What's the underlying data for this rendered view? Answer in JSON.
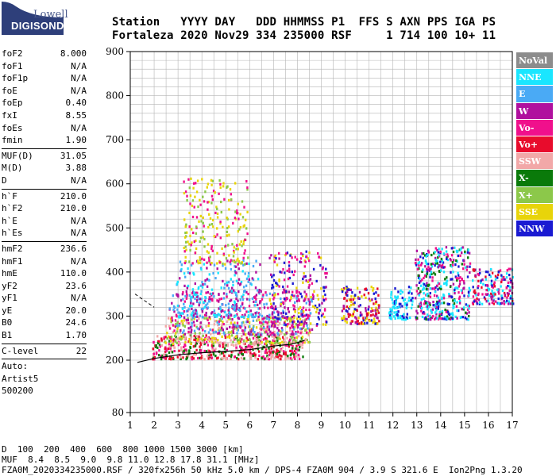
{
  "logo": {
    "line1": "Lowell",
    "line2": "DIGISONDE"
  },
  "header": {
    "line1": "Station   YYYY DAY   DDD HHMMSS P1  FFS S AXN PPS IGA PS",
    "line2": "Fortaleza 2020 Nov29 334 235000 RSF     1 714 100 10+ 11"
  },
  "params": {
    "group1": [
      {
        "name": "foF2",
        "value": "8.000"
      },
      {
        "name": "foF1",
        "value": "N/A"
      },
      {
        "name": "foF1p",
        "value": "N/A"
      },
      {
        "name": "foE",
        "value": "N/A"
      },
      {
        "name": "foEp",
        "value": "0.40"
      },
      {
        "name": "fxI",
        "value": "8.55"
      },
      {
        "name": "foEs",
        "value": "N/A"
      },
      {
        "name": "fmin",
        "value": "1.90"
      }
    ],
    "group2": [
      {
        "name": "MUF(D)",
        "value": "31.05"
      },
      {
        "name": "M(D)",
        "value": "3.88"
      },
      {
        "name": "D",
        "value": "N/A"
      }
    ],
    "group3": [
      {
        "name": "h`F",
        "value": "210.0"
      },
      {
        "name": "h`F2",
        "value": "210.0"
      },
      {
        "name": "h`E",
        "value": "N/A"
      },
      {
        "name": "h`Es",
        "value": "N/A"
      }
    ],
    "group4": [
      {
        "name": "hmF2",
        "value": "236.6"
      },
      {
        "name": "hmF1",
        "value": "N/A"
      },
      {
        "name": "hmE",
        "value": "110.0"
      },
      {
        "name": "yF2",
        "value": "23.6"
      },
      {
        "name": "yF1",
        "value": "N/A"
      },
      {
        "name": "yE",
        "value": "20.0"
      },
      {
        "name": "B0",
        "value": "24.6"
      },
      {
        "name": "B1",
        "value": "1.70"
      }
    ],
    "clevel": {
      "name": "C-level",
      "value": "22"
    },
    "auto": {
      "line1": "Auto:",
      "line2": "Artist5",
      "line3": "500200"
    }
  },
  "legend": [
    {
      "label": "NoVal",
      "color": "#8c8c8c",
      "text": "#ffffff"
    },
    {
      "label": "NNE",
      "color": "#1ae6ff",
      "text": "#ffffff"
    },
    {
      "label": "E",
      "color": "#4aaaf5",
      "text": "#ffffff"
    },
    {
      "label": "W",
      "color": "#b0109e",
      "text": "#ffffff"
    },
    {
      "label": "Vo-",
      "color": "#f0108c",
      "text": "#ffffff"
    },
    {
      "label": "Vo+",
      "color": "#e80c2c",
      "text": "#ffffff"
    },
    {
      "label": "SSW",
      "color": "#f2a8a8",
      "text": "#ffffff"
    },
    {
      "label": "X-",
      "color": "#0a7a0a",
      "text": "#ffffff"
    },
    {
      "label": "X+",
      "color": "#8cc84a",
      "text": "#ffffff"
    },
    {
      "label": "SSE",
      "color": "#e8d40a",
      "text": "#ffffff"
    },
    {
      "label": "NNW",
      "color": "#1a1ad2",
      "text": "#ffffff"
    }
  ],
  "chart_data": {
    "type": "scatter",
    "x_ticks": [
      "1",
      "2",
      "3",
      "4",
      "5",
      "6",
      "7",
      "8",
      "9",
      "10",
      "11",
      "12",
      "13",
      "14",
      "15",
      "16",
      "17"
    ],
    "y_ticks": [
      "80",
      "200",
      "300",
      "400",
      "500",
      "600",
      "700",
      "800",
      "900"
    ],
    "x_range": [
      1,
      17
    ],
    "y_ticks_values": [
      80,
      200,
      300,
      400,
      500,
      600,
      700,
      800,
      900
    ],
    "grid": true,
    "y_nonlinear_note": "80 at bottom, then linear 200-900",
    "clusters": [
      {
        "xr": [
          1.9,
          8.2
        ],
        "yr": [
          205,
          260
        ],
        "colors": [
          "#e80c2c",
          "#f0108c",
          "#f2a8a8",
          "#0a7a0a"
        ],
        "n": 520
      },
      {
        "xr": [
          2.4,
          8.5
        ],
        "yr": [
          240,
          300
        ],
        "colors": [
          "#e8d40a",
          "#8cc84a",
          "#f2a8a8"
        ],
        "n": 320
      },
      {
        "xr": [
          2.6,
          8.6
        ],
        "yr": [
          260,
          360
        ],
        "colors": [
          "#b0109e",
          "#f0108c",
          "#4aaaf5"
        ],
        "n": 380
      },
      {
        "xr": [
          2.9,
          6.4
        ],
        "yr": [
          300,
          430
        ],
        "colors": [
          "#4aaaf5",
          "#1ae6ff",
          "#b0109e"
        ],
        "n": 260
      },
      {
        "xr": [
          3.2,
          5.9
        ],
        "yr": [
          420,
          620
        ],
        "colors": [
          "#e8d40a",
          "#e8d40a",
          "#f0108c",
          "#8cc84a"
        ],
        "n": 230
      },
      {
        "xr": [
          6.8,
          9.2
        ],
        "yr": [
          280,
          450
        ],
        "colors": [
          "#1a1ad2",
          "#e8d40a",
          "#b0109e",
          "#f0108c"
        ],
        "n": 240
      },
      {
        "xr": [
          9.8,
          11.4
        ],
        "yr": [
          285,
          370
        ],
        "colors": [
          "#e8d40a",
          "#b0109e",
          "#1a1ad2",
          "#e80c2c"
        ],
        "n": 170
      },
      {
        "xr": [
          11.8,
          12.8
        ],
        "yr": [
          295,
          370
        ],
        "colors": [
          "#1ae6ff",
          "#1ae6ff",
          "#1a1ad2"
        ],
        "n": 90
      },
      {
        "xr": [
          12.9,
          15.2
        ],
        "yr": [
          295,
          460
        ],
        "colors": [
          "#1ae6ff",
          "#1ae6ff",
          "#1a1ad2",
          "#b0109e",
          "#f0108c",
          "#0a7a0a"
        ],
        "n": 420
      },
      {
        "xr": [
          15.3,
          17
        ],
        "yr": [
          330,
          410
        ],
        "colors": [
          "#b0109e",
          "#e80c2c",
          "#1ae6ff",
          "#f0108c",
          "#1a1ad2"
        ],
        "n": 170
      }
    ],
    "trace_solid": [
      [
        1.3,
        195
      ],
      [
        2,
        204
      ],
      [
        3,
        212
      ],
      [
        4,
        217
      ],
      [
        5,
        220
      ],
      [
        6,
        224
      ],
      [
        7,
        232
      ],
      [
        7.7,
        236
      ],
      [
        8,
        240
      ],
      [
        8.3,
        245
      ]
    ],
    "trace_dashed": [
      [
        1.2,
        350
      ],
      [
        1.6,
        335
      ],
      [
        2,
        320
      ]
    ]
  },
  "axis_note": {
    "d_label": "D",
    "d_values": "  100  200  400  600  800 1000 1500 3000 [km]",
    "muf_label": "MUF",
    "muf_values": "  8.4  8.5  9.0  9.8 11.0 12.8 17.8 31.1 [MHz]"
  },
  "footer": "FZA0M_2020334235000.RSF / 320fx256h 50 kHz 5.0 km / DPS-4 FZA0M 904 / 3.9 S 321.6 E  Ion2Png 1.3.20"
}
